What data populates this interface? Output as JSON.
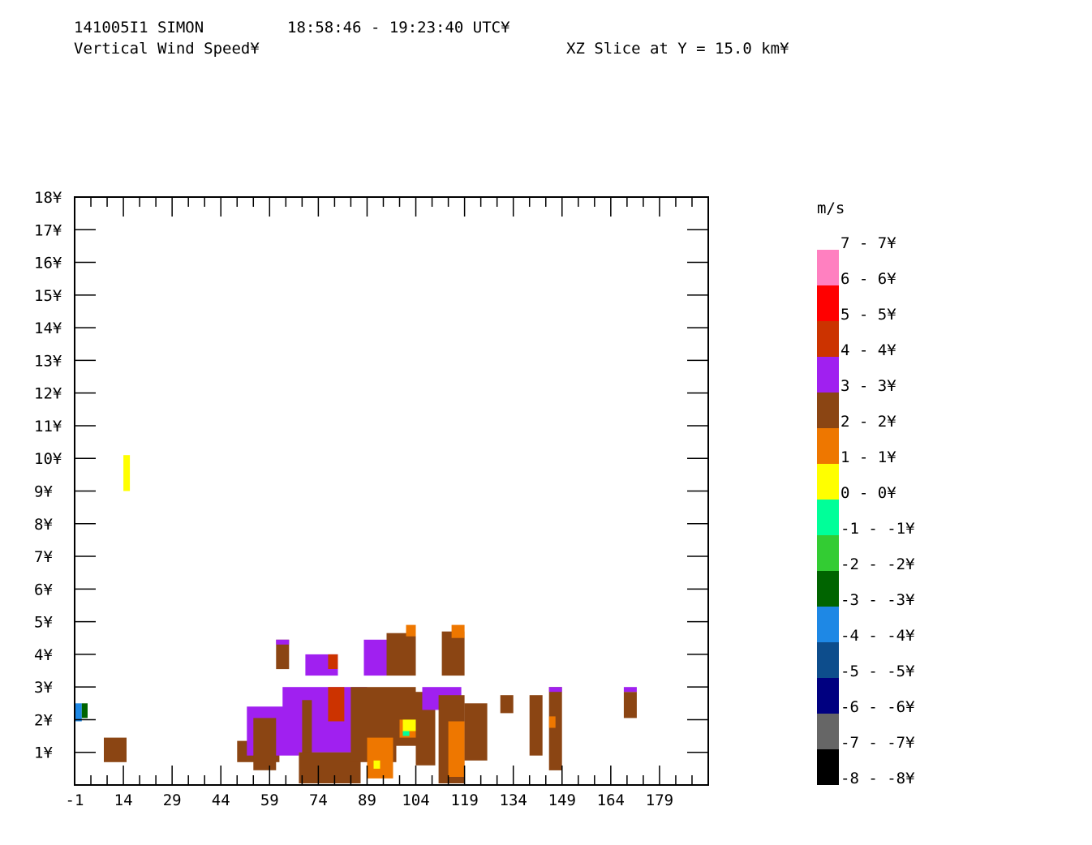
{
  "header": {
    "case_id": "141005I1 SIMON",
    "time_range": "18:58:46 - 19:23:40 UTC¥",
    "field_name": "Vertical Wind Speed¥",
    "slice": "XZ Slice at Y = 15.0 km¥"
  },
  "legend": {
    "unit": "m/s",
    "bins": [
      {
        "label": "7 - 7¥",
        "color": "#ff80c0"
      },
      {
        "label": "6 - 6¥",
        "color": "#ff0000"
      },
      {
        "label": "5 - 5¥",
        "color": "#cc3300"
      },
      {
        "label": "4 - 4¥",
        "color": "#a020f0"
      },
      {
        "label": "3 - 3¥",
        "color": "#8b4513"
      },
      {
        "label": "2 - 2¥",
        "color": "#ee7700"
      },
      {
        "label": "1 - 1¥",
        "color": "#ffff00"
      },
      {
        "label": "0 - 0¥",
        "color": "#00ff99"
      },
      {
        "label": "-1 - -1¥",
        "color": "#33cc33"
      },
      {
        "label": "-2 - -2¥",
        "color": "#006400"
      },
      {
        "label": "-3 - -3¥",
        "color": "#1e88e5"
      },
      {
        "label": "-4 - -4¥",
        "color": "#0d4d8c"
      },
      {
        "label": "-5 - -5¥",
        "color": "#000080"
      },
      {
        "label": "-6 - -6¥",
        "color": "#666666"
      },
      {
        "label": "-7 - -7¥",
        "color": "#000000"
      },
      {
        "label": "-8 - -8¥",
        "color": null
      }
    ]
  },
  "chart_data": {
    "type": "heatmap",
    "xlim": [
      -1,
      194
    ],
    "ylim": [
      0,
      18
    ],
    "x_ticks": [
      "-1",
      "14",
      "29",
      "44",
      "59",
      "74",
      "89",
      "104",
      "119",
      "134",
      "149",
      "164",
      "179"
    ],
    "y_ticks": [
      "1¥",
      "2¥",
      "3¥",
      "4¥",
      "5¥",
      "6¥",
      "7¥",
      "8¥",
      "9¥",
      "10¥",
      "11¥",
      "12¥",
      "13¥",
      "14¥",
      "15¥",
      "16¥",
      "17¥",
      "18¥"
    ],
    "colors": {
      "purple": "#a020f0",
      "brown": "#8b4513",
      "orange": "#ee7700",
      "red": "#cc3300",
      "yellow": "#ffff00",
      "cyan": "#00ff99",
      "blue": "#1e88e5",
      "green": "#33cc33",
      "darkgreen": "#006400"
    },
    "cells": [
      {
        "x": [
          14,
          16
        ],
        "y": [
          9.0,
          10.1
        ],
        "c": "yellow"
      },
      {
        "x": [
          -1,
          1.2
        ],
        "y": [
          1.95,
          2.5
        ],
        "c": "blue"
      },
      {
        "x": [
          1.2,
          3
        ],
        "y": [
          2.05,
          2.5
        ],
        "c": "darkgreen"
      },
      {
        "x": [
          8,
          15
        ],
        "y": [
          0.7,
          1.45
        ],
        "c": "brown"
      },
      {
        "x": [
          49,
          62
        ],
        "y": [
          0.7,
          1.35
        ],
        "c": "brown"
      },
      {
        "x": [
          52,
          68
        ],
        "y": [
          0.9,
          2.4
        ],
        "c": "purple"
      },
      {
        "x": [
          54,
          61
        ],
        "y": [
          0.45,
          2.05
        ],
        "c": "brown"
      },
      {
        "x": [
          63,
          89
        ],
        "y": [
          1.0,
          3.0
        ],
        "c": "purple"
      },
      {
        "x": [
          69,
          72
        ],
        "y": [
          0.8,
          2.6
        ],
        "c": "brown"
      },
      {
        "x": [
          77,
          82
        ],
        "y": [
          1.95,
          3.0
        ],
        "c": "red"
      },
      {
        "x": [
          68,
          87
        ],
        "y": [
          0.05,
          1.0
        ],
        "c": "brown"
      },
      {
        "x": [
          84,
          98
        ],
        "y": [
          0.7,
          3.0
        ],
        "c": "brown"
      },
      {
        "x": [
          89,
          97
        ],
        "y": [
          0.2,
          1.45
        ],
        "c": "orange"
      },
      {
        "x": [
          91,
          93
        ],
        "y": [
          0.5,
          0.75
        ],
        "c": "yellow"
      },
      {
        "x": [
          98,
          104
        ],
        "y": [
          1.2,
          3.0
        ],
        "c": "brown"
      },
      {
        "x": [
          99,
          104
        ],
        "y": [
          1.45,
          2.0
        ],
        "c": "orange"
      },
      {
        "x": [
          100,
          104
        ],
        "y": [
          1.65,
          2.0
        ],
        "c": "yellow"
      },
      {
        "x": [
          100,
          102
        ],
        "y": [
          1.5,
          1.65
        ],
        "c": "cyan"
      },
      {
        "x": [
          104,
          110
        ],
        "y": [
          0.6,
          2.85
        ],
        "c": "brown"
      },
      {
        "x": [
          106,
          118
        ],
        "y": [
          2.3,
          3.0
        ],
        "c": "purple"
      },
      {
        "x": [
          111,
          119
        ],
        "y": [
          0.05,
          2.75
        ],
        "c": "brown"
      },
      {
        "x": [
          114,
          119
        ],
        "y": [
          0.25,
          1.95
        ],
        "c": "orange"
      },
      {
        "x": [
          119,
          126
        ],
        "y": [
          0.75,
          2.5
        ],
        "c": "brown"
      },
      {
        "x": [
          130,
          134
        ],
        "y": [
          2.2,
          2.75
        ],
        "c": "brown"
      },
      {
        "x": [
          139,
          143
        ],
        "y": [
          0.9,
          2.75
        ],
        "c": "brown"
      },
      {
        "x": [
          145,
          149
        ],
        "y": [
          0.45,
          3.0
        ],
        "c": "brown"
      },
      {
        "x": [
          145,
          147
        ],
        "y": [
          1.75,
          2.1
        ],
        "c": "orange"
      },
      {
        "x": [
          145,
          149
        ],
        "y": [
          2.85,
          3.0
        ],
        "c": "purple"
      },
      {
        "x": [
          168,
          172
        ],
        "y": [
          2.05,
          2.85
        ],
        "c": "brown"
      },
      {
        "x": [
          168,
          172
        ],
        "y": [
          2.85,
          3.0
        ],
        "c": "purple"
      },
      {
        "x": [
          61,
          65
        ],
        "y": [
          3.55,
          4.45
        ],
        "c": "brown"
      },
      {
        "x": [
          61,
          65
        ],
        "y": [
          4.3,
          4.45
        ],
        "c": "purple"
      },
      {
        "x": [
          70,
          80
        ],
        "y": [
          3.35,
          4.0
        ],
        "c": "purple"
      },
      {
        "x": [
          77,
          80
        ],
        "y": [
          3.55,
          4.0
        ],
        "c": "red"
      },
      {
        "x": [
          88,
          95
        ],
        "y": [
          3.35,
          4.45
        ],
        "c": "purple"
      },
      {
        "x": [
          95,
          104
        ],
        "y": [
          3.35,
          4.65
        ],
        "c": "brown"
      },
      {
        "x": [
          101,
          104
        ],
        "y": [
          4.55,
          4.9
        ],
        "c": "orange"
      },
      {
        "x": [
          112,
          119
        ],
        "y": [
          3.35,
          4.7
        ],
        "c": "brown"
      },
      {
        "x": [
          115,
          119
        ],
        "y": [
          4.5,
          4.9
        ],
        "c": "orange"
      }
    ]
  }
}
